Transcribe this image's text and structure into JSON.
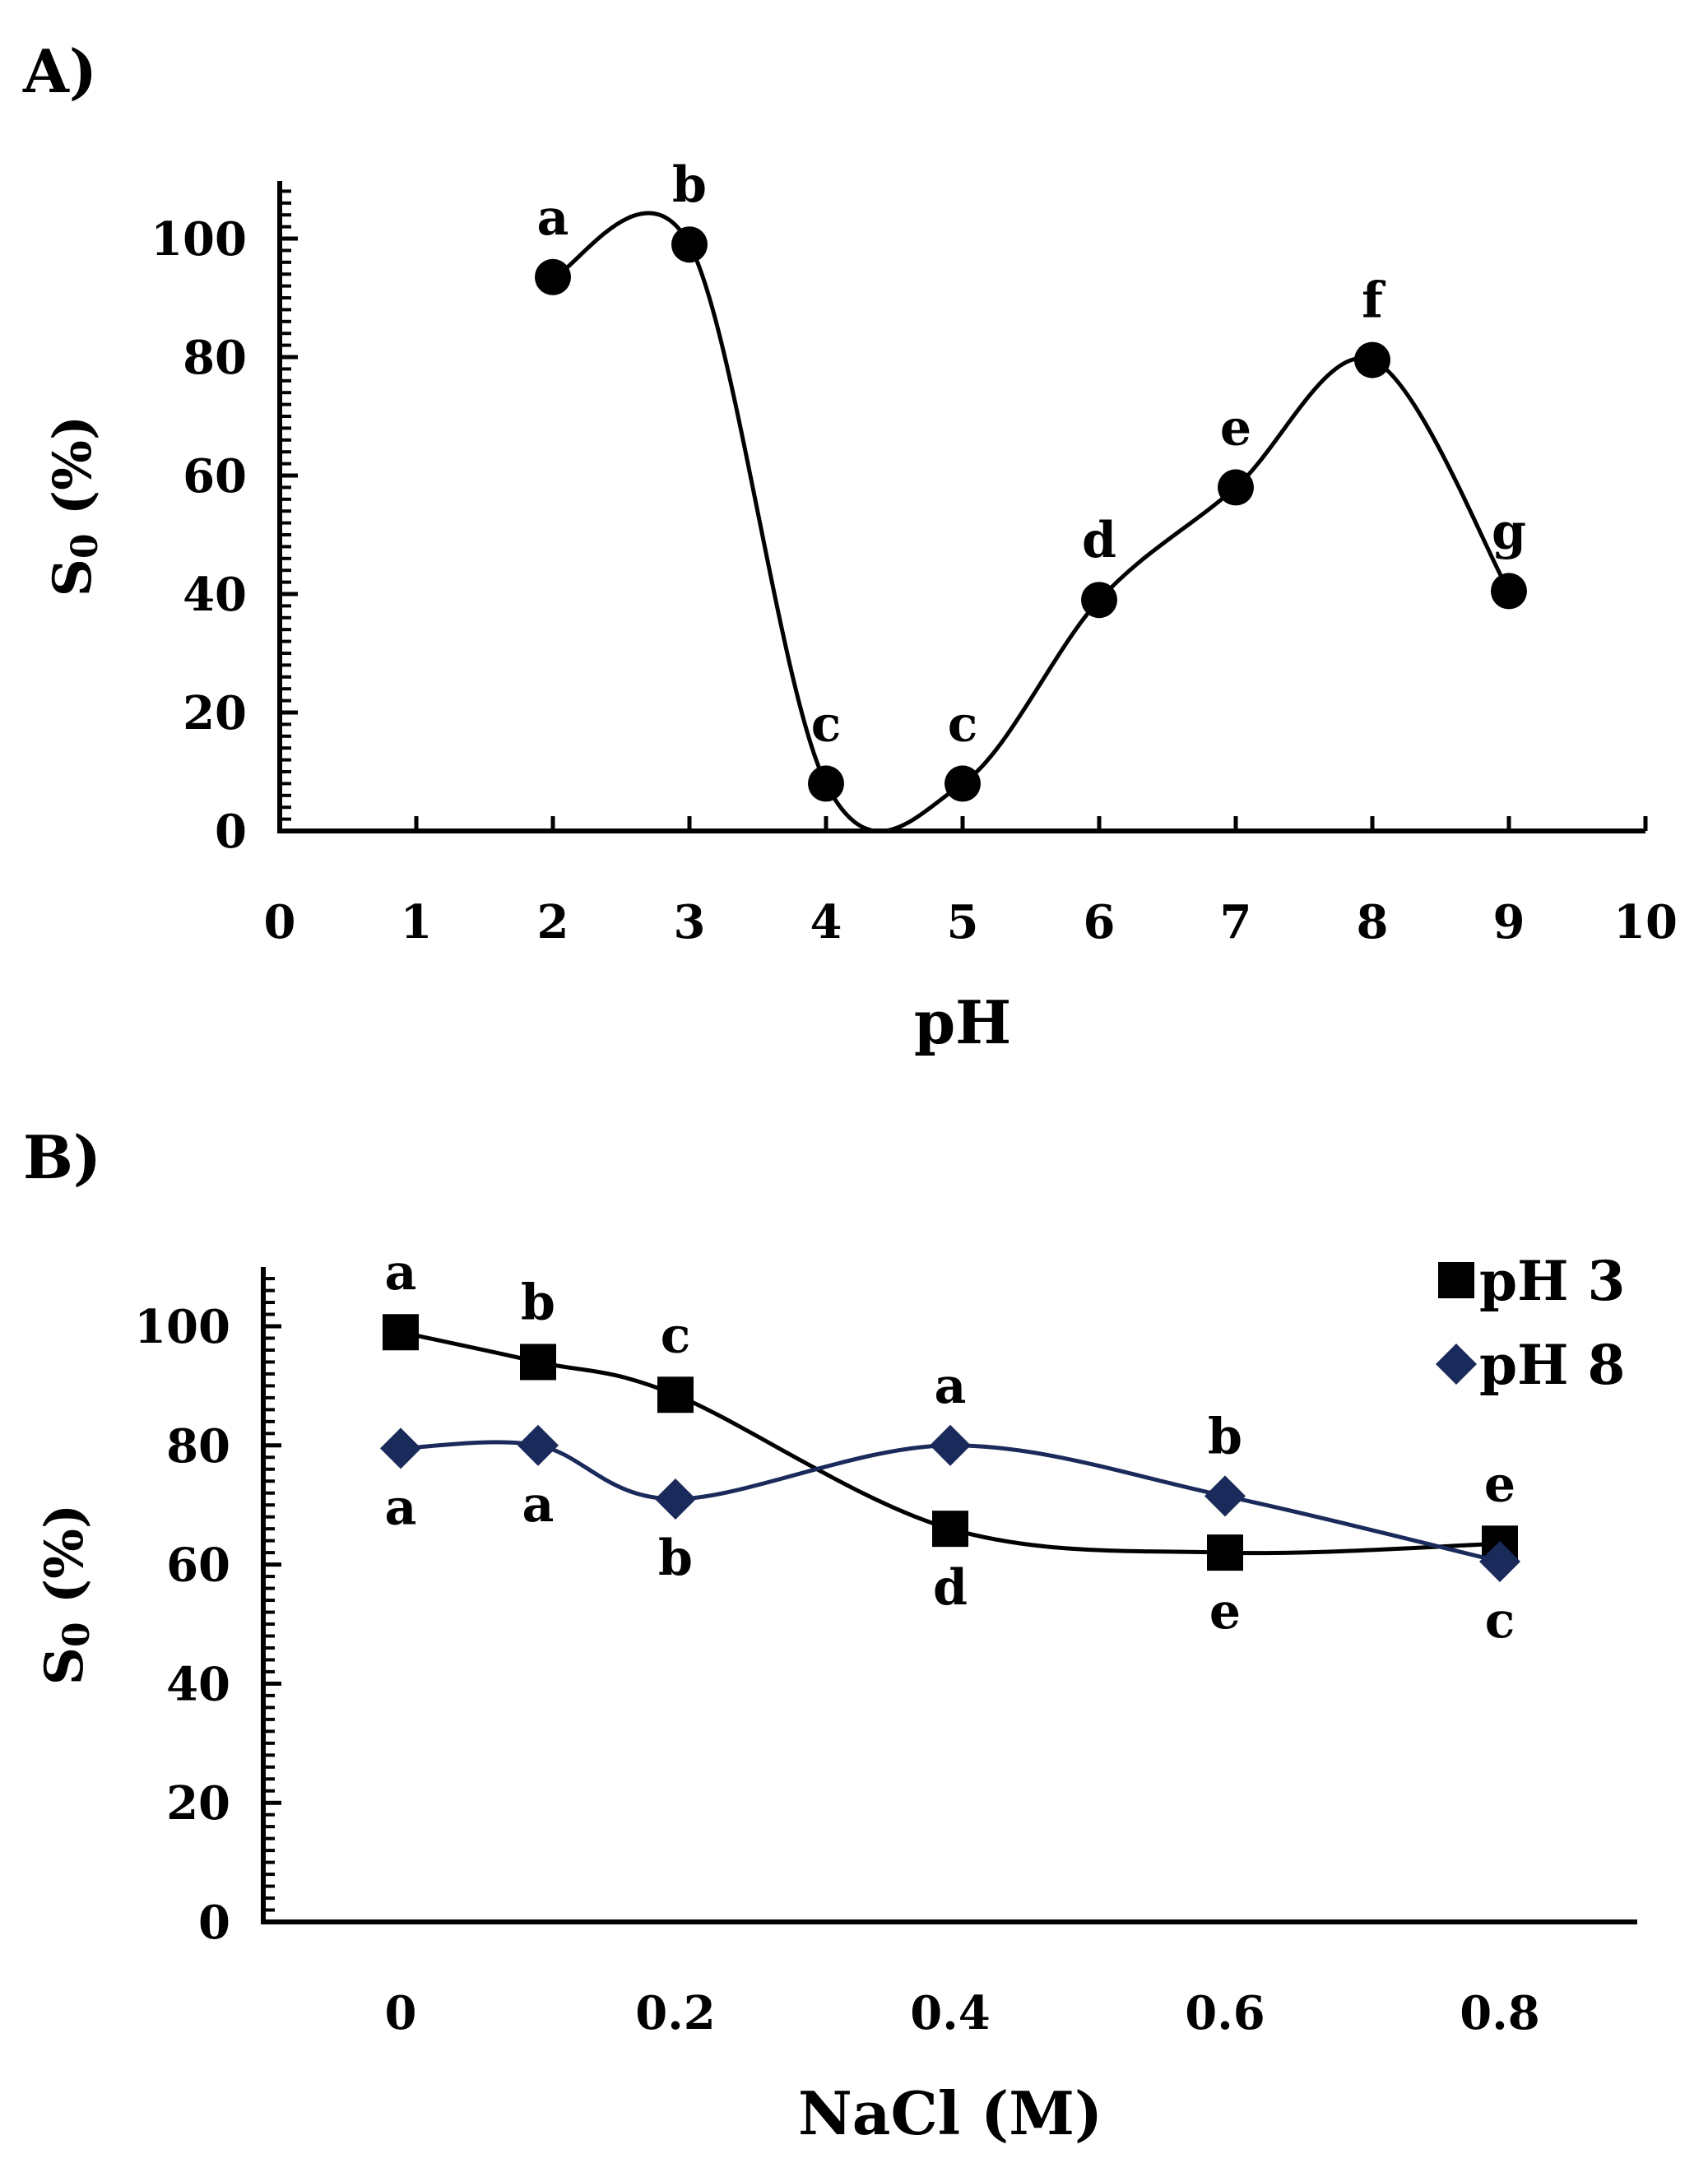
{
  "chart_data": [
    {
      "type": "line",
      "panel_label": "A)",
      "xlabel": "pH",
      "ylabel_main": "S",
      "ylabel_sub": "0",
      "ylabel_tail": " (%)",
      "xlim": [
        0,
        10
      ],
      "ylim": [
        0,
        100
      ],
      "xticks": [
        "0",
        "1",
        "2",
        "3",
        "4",
        "5",
        "6",
        "7",
        "8",
        "9",
        "10"
      ],
      "yticks": [
        "0",
        "20",
        "40",
        "60",
        "80",
        "100"
      ],
      "grid": false,
      "series": [
        {
          "marker": "circle",
          "color": "#000000",
          "x": [
            2,
            3,
            4,
            5,
            6,
            7,
            8,
            9
          ],
          "y": [
            93.5,
            99,
            8,
            8,
            39,
            58,
            79.5,
            40.5
          ],
          "labels": [
            "a",
            "b",
            "c",
            "c",
            "d",
            "e",
            "f",
            "g"
          ]
        }
      ]
    },
    {
      "type": "line",
      "panel_label": "B)",
      "xlabel": "NaCl (M)",
      "ylabel_main": "S",
      "ylabel_sub": "0",
      "ylabel_tail": " (%)",
      "xlim": [
        -0.1,
        0.9
      ],
      "ylim": [
        0,
        100
      ],
      "xticks": [
        "0",
        "0.2",
        "0.4",
        "0.6",
        "0.8"
      ],
      "xtick_values": [
        0,
        0.2,
        0.4,
        0.6,
        0.8
      ],
      "yticks": [
        "0",
        "20",
        "40",
        "60",
        "80",
        "100"
      ],
      "grid": false,
      "legend_position": "top-right",
      "series": [
        {
          "name": "pH 3",
          "marker": "square",
          "color": "#000000",
          "x": [
            0,
            0.1,
            0.2,
            0.4,
            0.6,
            0.8
          ],
          "y": [
            99,
            94,
            88.5,
            66,
            62,
            63.5
          ],
          "labels": [
            "a",
            "b",
            "c",
            "d",
            "e",
            "e"
          ],
          "label_side": [
            "above",
            "above",
            "above",
            "below",
            "below",
            "above"
          ]
        },
        {
          "name": "pH 8",
          "marker": "diamond",
          "color": "#1a2a5a",
          "x": [
            0,
            0.1,
            0.2,
            0.4,
            0.6,
            0.8
          ],
          "y": [
            79.5,
            80,
            71,
            80,
            71.5,
            60.5
          ],
          "labels": [
            "a",
            "a",
            "b",
            "a",
            "b",
            "c"
          ],
          "label_side": [
            "below",
            "below",
            "below",
            "above",
            "above",
            "below"
          ]
        }
      ]
    }
  ]
}
